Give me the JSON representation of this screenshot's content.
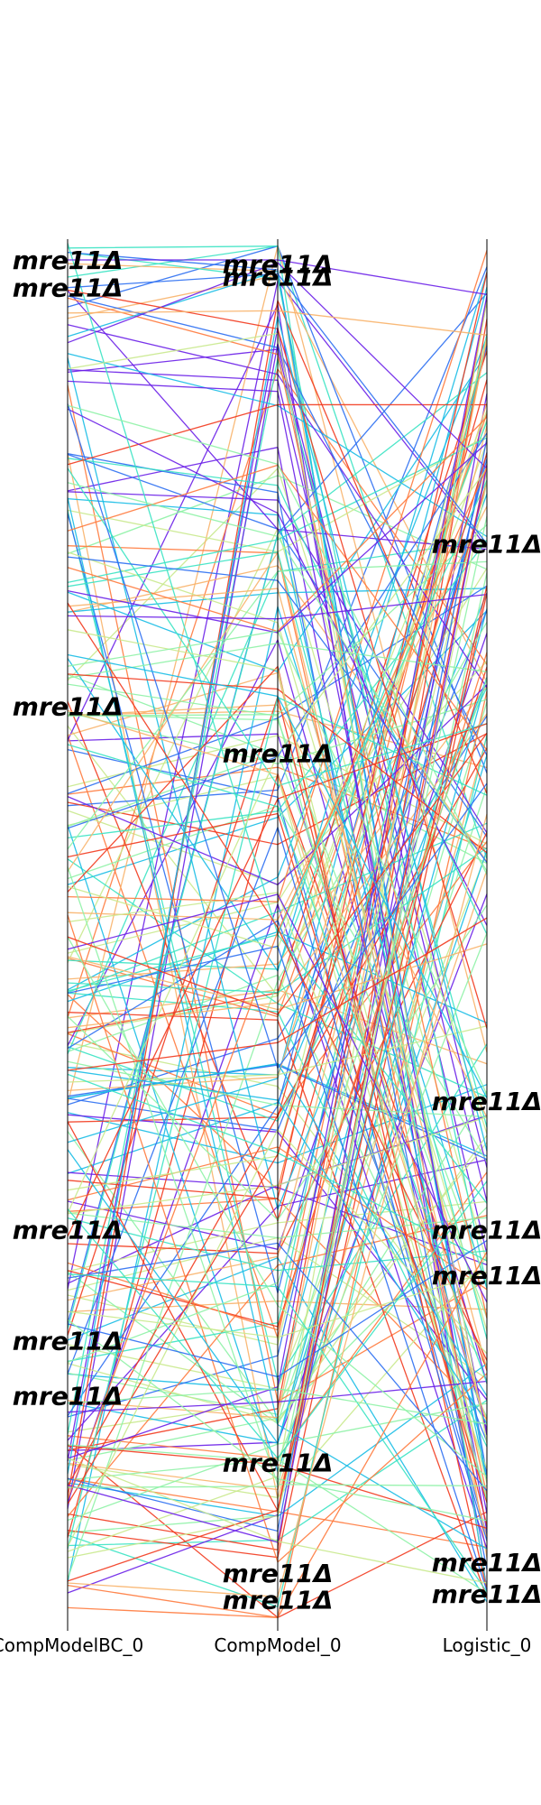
{
  "chart_data": {
    "type": "parallel_coordinates",
    "axes": [
      "CompModelBC_0",
      "CompModel_0",
      "Logistic_0"
    ],
    "title": "",
    "ylim": [
      0,
      1
    ],
    "grid": false,
    "legend": "none",
    "colormap": [
      "#6a1fe8",
      "#2c6ff2",
      "#18bde6",
      "#3ae3c3",
      "#8ef2a6",
      "#c9e98d",
      "#f8b36a",
      "#ff7a3d",
      "#f23a1e"
    ],
    "line_count": 240,
    "annotation_text": "mre11Δ",
    "highlighted": [
      {
        "label": "mre11Δ",
        "values": [
          0.985,
          0.985,
          0.96
        ]
      },
      {
        "label": "mre11Δ",
        "values": [
          0.965,
          0.975,
          0.78
        ]
      },
      {
        "label": "mre11Δ",
        "values": [
          0.7,
          0.67,
          0.38
        ]
      },
      {
        "label": "mre11Δ",
        "values": [
          0.3,
          0.12,
          0.32
        ]
      },
      {
        "label": "mre11Δ",
        "values": [
          0.22,
          0.105,
          0.075
        ]
      },
      {
        "label": "mre11Δ",
        "values": [
          0.12,
          0.06,
          0.03
        ]
      },
      {
        "label": "mre11Δ",
        "values": [
          0.03,
          0.02,
          0.585
        ]
      },
      {
        "label": "mre11Δ",
        "values": [
          0.09,
          0.5,
          0.835
        ]
      },
      {
        "label": "mre11Δ",
        "values": [
          0.4,
          0.42,
          0.51
        ]
      }
    ],
    "annotations": [
      {
        "axis": 0,
        "value": 0.985
      },
      {
        "axis": 0,
        "value": 0.965
      },
      {
        "axis": 0,
        "value": 0.663
      },
      {
        "axis": 0,
        "value": 0.285
      },
      {
        "axis": 0,
        "value": 0.205
      },
      {
        "axis": 0,
        "value": 0.165
      },
      {
        "axis": 1,
        "value": 0.982
      },
      {
        "axis": 1,
        "value": 0.973
      },
      {
        "axis": 1,
        "value": 0.629
      },
      {
        "axis": 1,
        "value": 0.117
      },
      {
        "axis": 1,
        "value": 0.037
      },
      {
        "axis": 1,
        "value": 0.018
      },
      {
        "axis": 2,
        "value": 0.78
      },
      {
        "axis": 2,
        "value": 0.378
      },
      {
        "axis": 2,
        "value": 0.285
      },
      {
        "axis": 2,
        "value": 0.252
      },
      {
        "axis": 2,
        "value": 0.045
      },
      {
        "axis": 2,
        "value": 0.022
      }
    ]
  }
}
